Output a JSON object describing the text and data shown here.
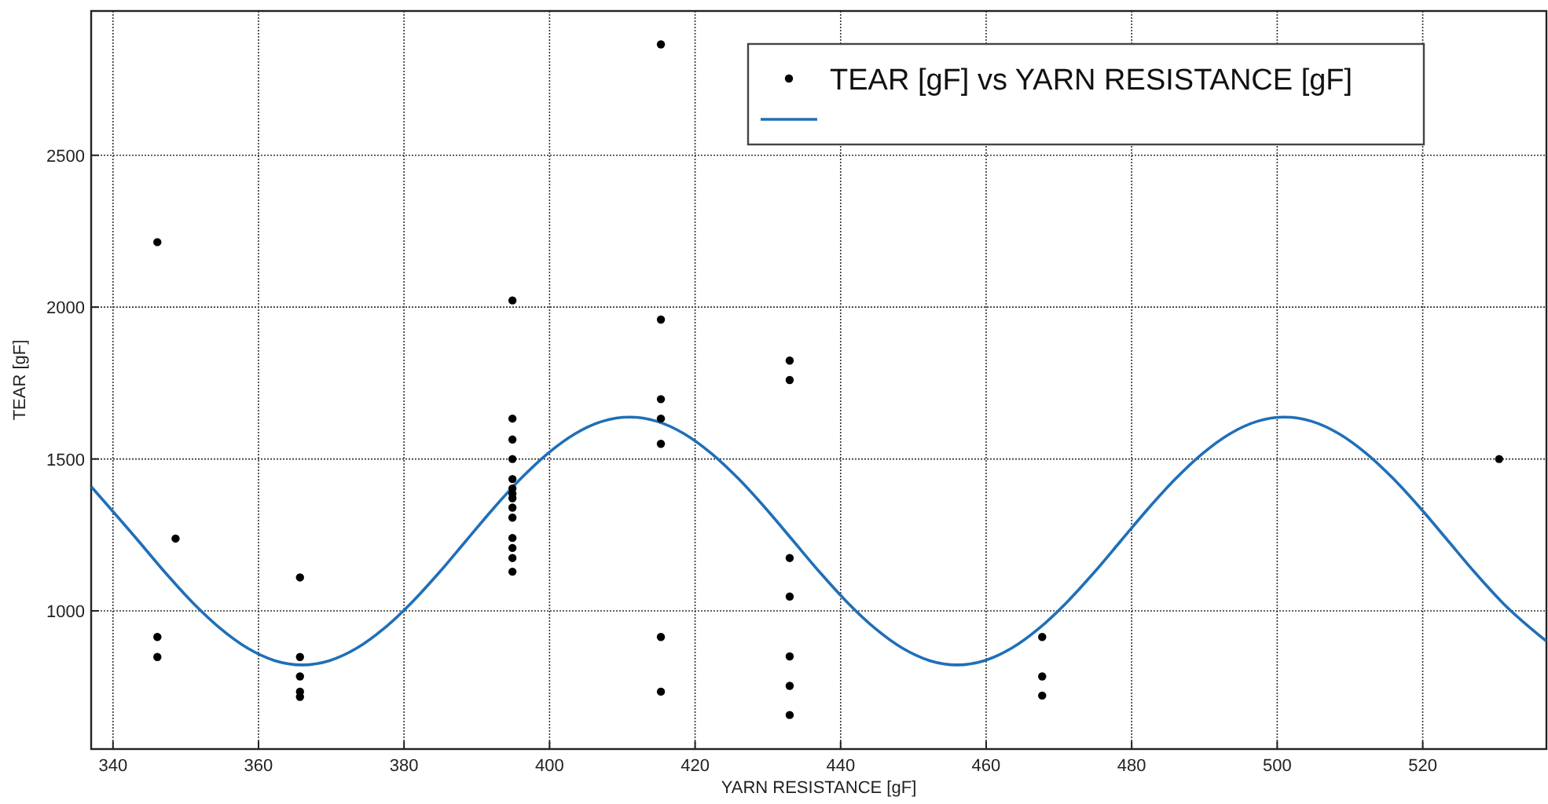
{
  "chart_data": {
    "type": "scatter",
    "xlabel": "YARN RESISTANCE [gF]",
    "ylabel": "TEAR [gF]",
    "xlim": [
      337,
      537
    ],
    "ylim": [
      545,
      2975
    ],
    "xticks": [
      340,
      360,
      380,
      400,
      420,
      440,
      460,
      480,
      500,
      520
    ],
    "yticks": [
      1000,
      1500,
      2000,
      2500
    ],
    "grid": true,
    "legend": "top right",
    "marker": "circle",
    "series": [
      {
        "name": "TEAR [gF] vs YARN RESISTANCE [gF]",
        "color": "#000000",
        "x": [
          346.1,
          346.1,
          346.1,
          348.6,
          365.7,
          365.7,
          365.7,
          365.7,
          365.7,
          394.9,
          394.9,
          394.9,
          394.9,
          394.9,
          394.9,
          394.9,
          394.9,
          394.9,
          394.9,
          394.9,
          394.9,
          394.9,
          394.9,
          415.3,
          415.3,
          415.3,
          415.3,
          415.3,
          415.3,
          415.3,
          433,
          433,
          433,
          433,
          433,
          433,
          433,
          467.7,
          467.7,
          467.7,
          530.5
        ],
        "values": [
          2214,
          914,
          848,
          1238,
          1110,
          848,
          784,
          734,
          717,
          2022,
          1633,
          1564,
          1500,
          1434,
          1403,
          1386,
          1371,
          1340,
          1307,
          1240,
          1207,
          1174,
          1129,
          2865,
          1959,
          1697,
          1633,
          1550,
          914,
          734,
          1824,
          1760,
          1174,
          1047,
          850,
          753,
          657,
          914,
          784,
          721,
          1500
        ]
      },
      {
        "type": "line",
        "color": "#1f6fb8",
        "marker": "none",
        "line_style": "solid",
        "x": [
          337,
          343.5,
          347.25,
          351,
          354.75,
          358.5,
          362.25,
          366,
          369.75,
          373.5,
          377.25,
          381,
          384.75,
          388.5,
          392.25,
          396,
          399.75,
          403.5,
          407.25,
          411,
          414.75,
          418.5,
          422.25,
          426,
          429.75,
          433.5,
          437.25,
          441,
          444.75,
          448.5,
          452.25,
          456,
          459.75,
          463.5,
          467.25,
          471,
          474.75,
          478.5,
          482.25,
          486,
          489.75,
          493.5,
          497.25,
          501,
          504.75,
          508.5,
          512.25,
          516,
          519.75,
          523.5,
          527.25,
          531,
          537
        ],
        "values": [
          1409,
          1230,
          1124,
          1026,
          942,
          877,
          836,
          822,
          836,
          877,
          942,
          1026,
          1124,
          1230,
          1336,
          1434,
          1518,
          1583,
          1624,
          1638,
          1624,
          1583,
          1518,
          1434,
          1336,
          1230,
          1124,
          1026,
          942,
          877,
          836,
          822,
          836,
          877,
          942,
          1026,
          1124,
          1230,
          1336,
          1434,
          1518,
          1583,
          1624,
          1638,
          1624,
          1583,
          1518,
          1434,
          1336,
          1230,
          1124,
          1026,
          900
        ]
      }
    ]
  }
}
